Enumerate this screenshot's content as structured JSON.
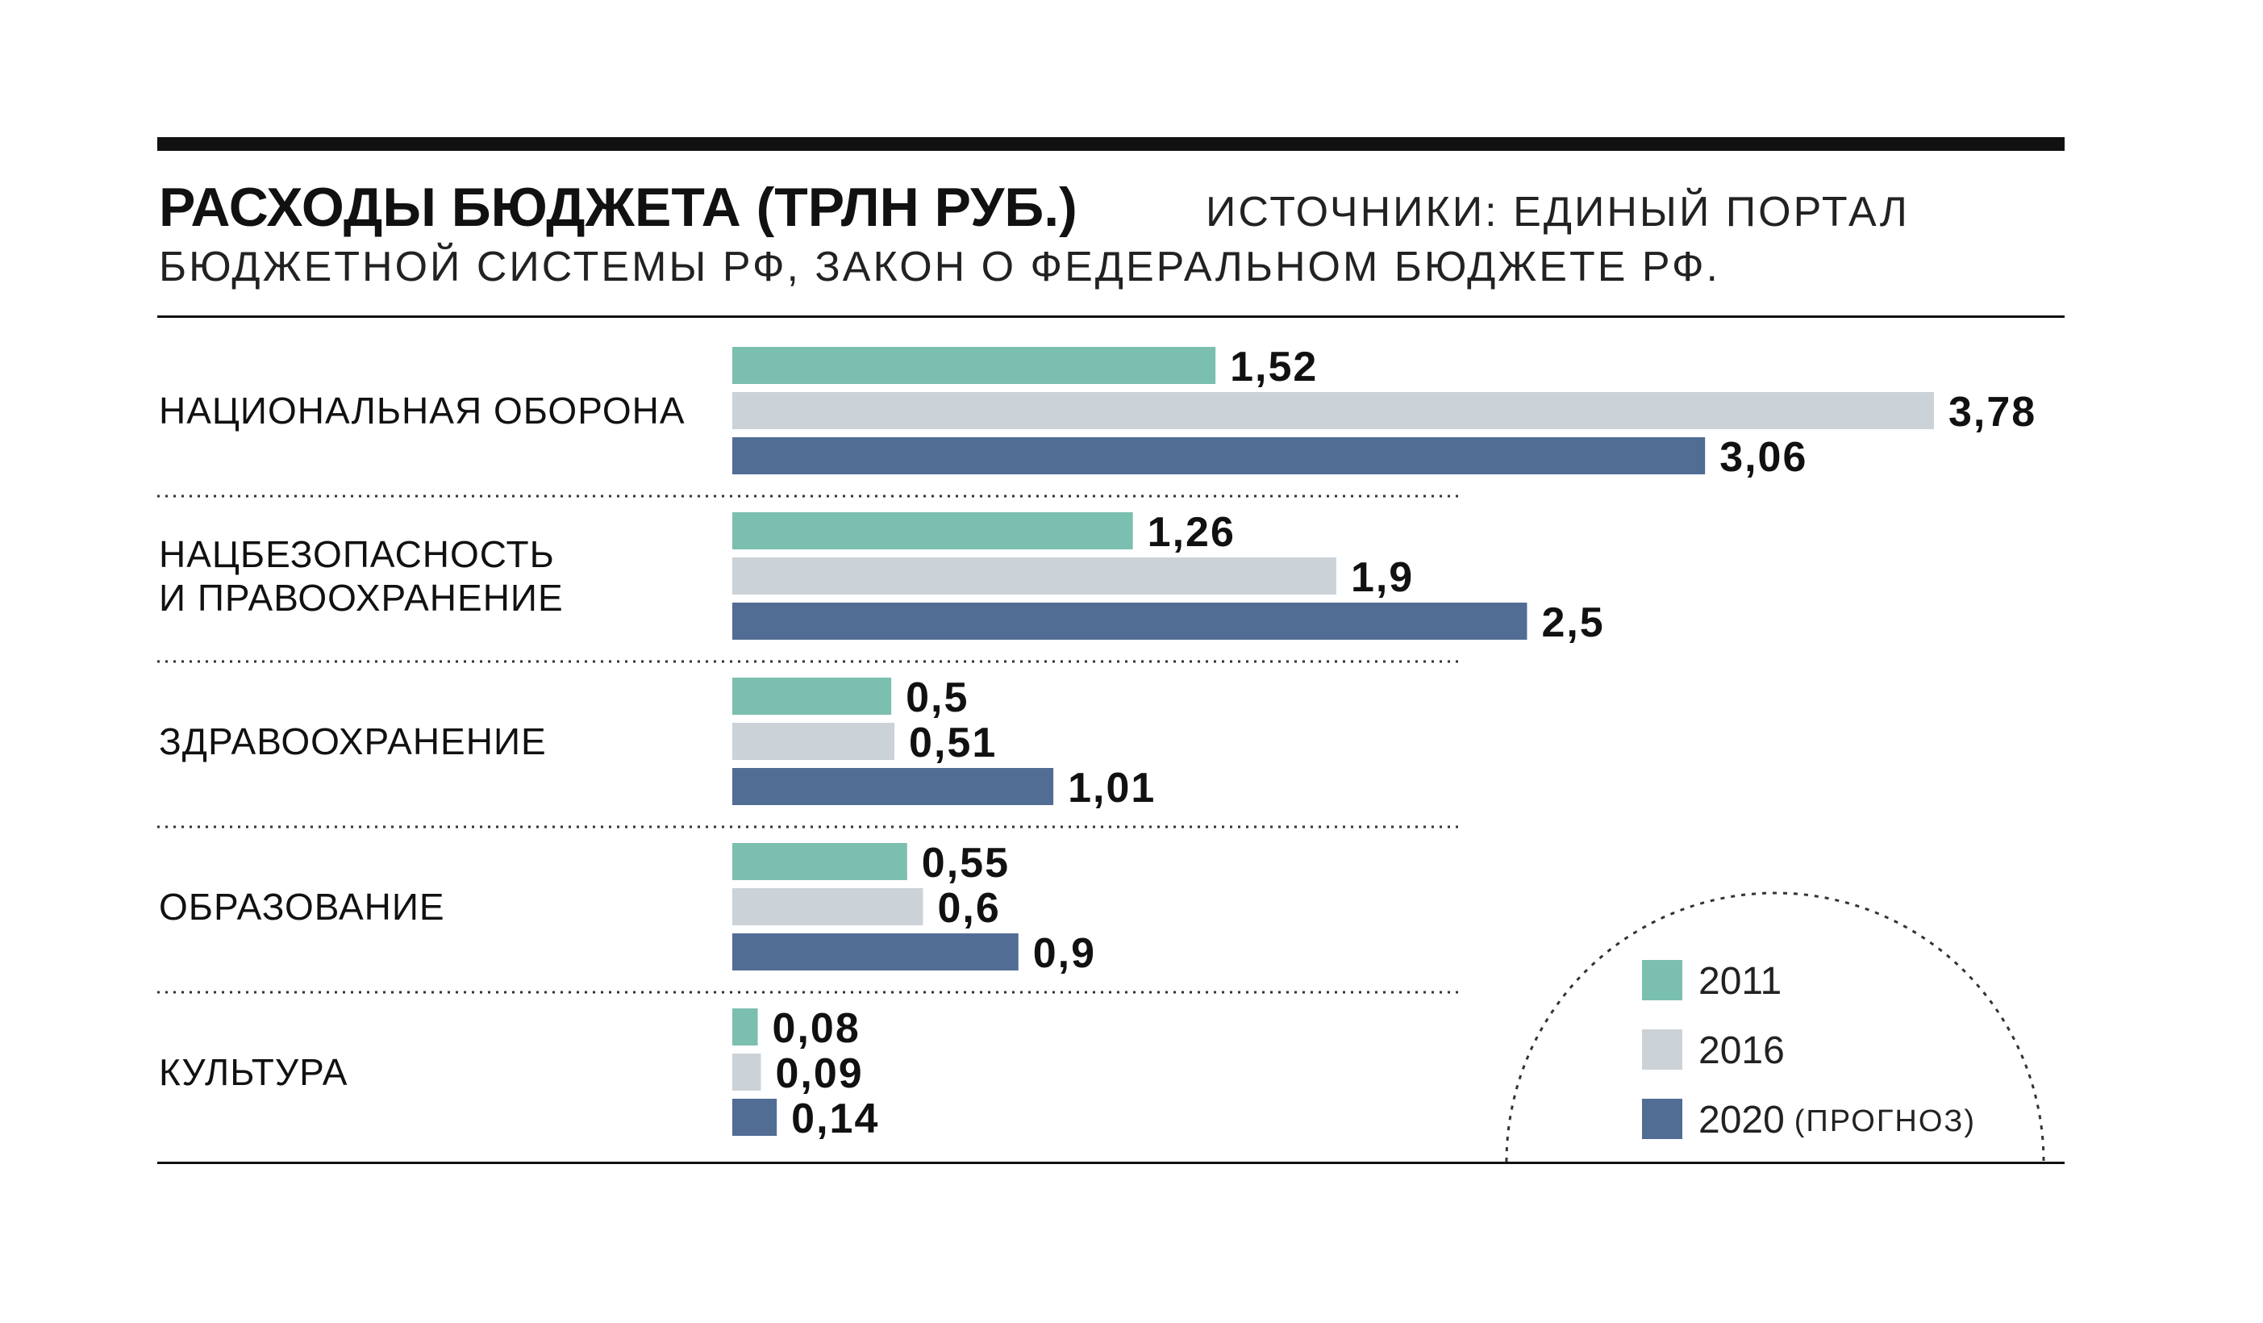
{
  "header": {
    "title": "РАСХОДЫ БЮДЖЕТА (ТРЛН РУБ.)",
    "source_line1": "ИСТОЧНИКИ: ЕДИНЫЙ ПОРТАЛ",
    "source_line2": "БЮДЖЕТНОЙ СИСТЕМЫ РФ, ЗАКОН О ФЕДЕРАЛЬНОМ БЮДЖЕТЕ РФ."
  },
  "legend": {
    "items": [
      {
        "label": "2011",
        "note": ""
      },
      {
        "label": "2016",
        "note": ""
      },
      {
        "label": "2020",
        "note": "(ПРОГНОЗ)"
      }
    ]
  },
  "chart_data": {
    "type": "bar",
    "orientation": "horizontal",
    "title": "РАСХОДЫ БЮДЖЕТА (ТРЛН РУБ.)",
    "categories": [
      [
        "НАЦИОНАЛЬНАЯ ОБОРОНА"
      ],
      [
        "НАЦБЕЗОПАСНОСТЬ",
        "И ПРАВООХРАНЕНИЕ"
      ],
      [
        "ЗДРАВООХРАНЕНИЕ"
      ],
      [
        "ОБРАЗОВАНИЕ"
      ],
      [
        "КУЛЬТУРА"
      ]
    ],
    "series": [
      {
        "name": "2011",
        "color": "#7bbfb0",
        "values": [
          1.52,
          1.26,
          0.5,
          0.55,
          0.08
        ],
        "labels": [
          "1,52",
          "1,26",
          "0,5",
          "0,55",
          "0,08"
        ]
      },
      {
        "name": "2016",
        "color": "#cbd2d8",
        "values": [
          3.78,
          1.9,
          0.51,
          0.6,
          0.09
        ],
        "labels": [
          "3,78",
          "1,9",
          "0,51",
          "0,6",
          "0,09"
        ]
      },
      {
        "name": "2020 (ПРОГНОЗ)",
        "color": "#516d94",
        "values": [
          3.06,
          2.5,
          1.01,
          0.9,
          0.14
        ],
        "labels": [
          "3,06",
          "2,5",
          "1,01",
          "0,9",
          "0,14"
        ]
      }
    ],
    "xlim": [
      0,
      3.78
    ],
    "grid": false,
    "legend_position": "bottom-right"
  }
}
